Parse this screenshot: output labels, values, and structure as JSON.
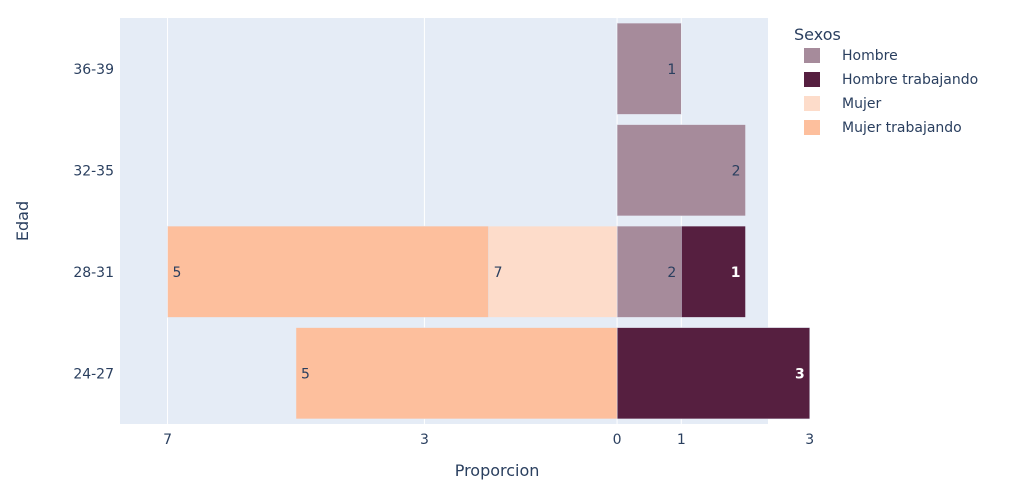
{
  "chart_data": {
    "type": "bar",
    "orientation": "horizontal",
    "barmode": "relative",
    "xlabel": "Proporcion",
    "ylabel": "Edad",
    "categories": [
      "24-27",
      "28-31",
      "32-35",
      "36-39"
    ],
    "x_ticks": [
      {
        "value": -7,
        "label": "7"
      },
      {
        "value": -3,
        "label": "3"
      },
      {
        "value": 0,
        "label": "0"
      },
      {
        "value": 1,
        "label": "1"
      },
      {
        "value": 3,
        "label": "3"
      }
    ],
    "legend": {
      "title": "Sexos",
      "position": "top-right"
    },
    "grid": true,
    "series": [
      {
        "name": "Hombre",
        "color": "#a68b9b",
        "label_color": "#2a3f5f",
        "values": [
          null,
          1,
          2,
          1
        ],
        "display_values": [
          "",
          "2",
          "2",
          "1"
        ]
      },
      {
        "name": "Hombre trabajando",
        "color": "#561f40",
        "label_color": "#ffffff",
        "values": [
          3,
          1,
          null,
          null
        ],
        "display_values": [
          "3",
          "1",
          "",
          ""
        ]
      },
      {
        "name": "Mujer",
        "color": "#fddcca",
        "label_color": "#2a3f5f",
        "values": [
          null,
          -2,
          null,
          null
        ],
        "display_values": [
          "",
          "7",
          "",
          ""
        ]
      },
      {
        "name": "Mujer trabajando",
        "color": "#fdbf9d",
        "label_color": "#2a3f5f",
        "values": [
          -5,
          -5,
          null,
          null
        ],
        "display_values": [
          "5",
          "5",
          "",
          ""
        ]
      }
    ]
  }
}
